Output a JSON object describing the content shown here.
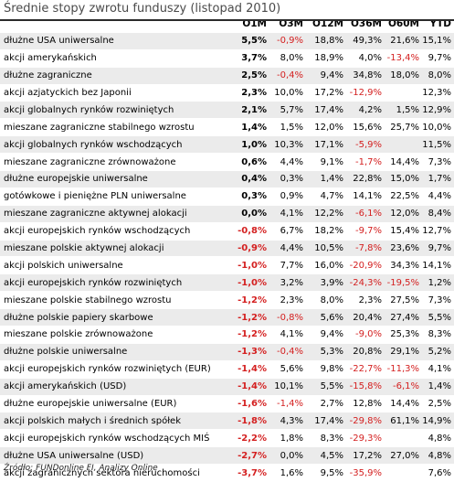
{
  "title": "Średnie stopy zwrotu funduszy (listopad 2010)",
  "columns": [
    "",
    "O1M",
    "O3M",
    "O12M",
    "O36M",
    "O60M",
    "YTD"
  ],
  "rows": [
    [
      "dłużne USA uniwersalne",
      "5,5%",
      "-0,9%",
      "18,8%",
      "49,3%",
      "21,6%",
      "15,1%"
    ],
    [
      "akcji amerykańskich",
      "3,7%",
      "8,0%",
      "18,9%",
      "4,0%",
      "-13,4%",
      "9,7%"
    ],
    [
      "dłużne zagraniczne",
      "2,5%",
      "-0,4%",
      "9,4%",
      "34,8%",
      "18,0%",
      "8,0%"
    ],
    [
      "akcji azjatyckich bez Japonii",
      "2,3%",
      "10,0%",
      "17,2%",
      "-12,9%",
      "",
      "12,3%"
    ],
    [
      "akcji globalnych rynków rozwiniętych",
      "2,1%",
      "5,7%",
      "17,4%",
      "4,2%",
      "1,5%",
      "12,9%"
    ],
    [
      "mieszane zagraniczne stabilnego wzrostu",
      "1,4%",
      "1,5%",
      "12,0%",
      "15,6%",
      "25,7%",
      "10,0%"
    ],
    [
      "akcji globalnych rynków wschodzących",
      "1,0%",
      "10,3%",
      "17,1%",
      "-5,9%",
      "",
      "11,5%"
    ],
    [
      "mieszane zagraniczne zrównoważone",
      "0,6%",
      "4,4%",
      "9,1%",
      "-1,7%",
      "14,4%",
      "7,3%"
    ],
    [
      "dłużne europejskie uniwersalne",
      "0,4%",
      "0,3%",
      "1,4%",
      "22,8%",
      "15,0%",
      "1,7%"
    ],
    [
      "gotówkowe i pieniężne PLN uniwersalne",
      "0,3%",
      "0,9%",
      "4,7%",
      "14,1%",
      "22,5%",
      "4,4%"
    ],
    [
      "mieszane zagraniczne aktywnej alokacji",
      "0,0%",
      "4,1%",
      "12,2%",
      "-6,1%",
      "12,0%",
      "8,4%"
    ],
    [
      "akcji europejskich rynków wschodzących",
      "-0,8%",
      "6,7%",
      "18,2%",
      "-9,7%",
      "15,4%",
      "12,7%"
    ],
    [
      "mieszane polskie aktywnej alokacji",
      "-0,9%",
      "4,4%",
      "10,5%",
      "-7,8%",
      "23,6%",
      "9,7%"
    ],
    [
      "akcji polskich uniwersalne",
      "-1,0%",
      "7,7%",
      "16,0%",
      "-20,9%",
      "34,3%",
      "14,1%"
    ],
    [
      "akcji europejskich rynków rozwiniętych",
      "-1,0%",
      "3,2%",
      "3,9%",
      "-24,3%",
      "-19,5%",
      "1,2%"
    ],
    [
      "mieszane polskie stabilnego wzrostu",
      "-1,2%",
      "2,3%",
      "8,0%",
      "2,3%",
      "27,5%",
      "7,3%"
    ],
    [
      "dłużne polskie papiery skarbowe",
      "-1,2%",
      "-0,8%",
      "5,6%",
      "20,4%",
      "27,4%",
      "5,5%"
    ],
    [
      "mieszane polskie zrównoważone",
      "-1,2%",
      "4,1%",
      "9,4%",
      "-9,0%",
      "25,3%",
      "8,3%"
    ],
    [
      "dłużne polskie uniwersalne",
      "-1,3%",
      "-0,4%",
      "5,3%",
      "20,8%",
      "29,1%",
      "5,2%"
    ],
    [
      "akcji europejskich rynków rozwiniętych (EUR)",
      "-1,4%",
      "5,6%",
      "9,8%",
      "-22,7%",
      "-11,3%",
      "4,1%"
    ],
    [
      "akcji amerykańskich (USD)",
      "-1,4%",
      "10,1%",
      "5,5%",
      "-15,8%",
      "-6,1%",
      "1,4%"
    ],
    [
      "dłużne europejskie uniwersalne (EUR)",
      "-1,6%",
      "-1,4%",
      "2,7%",
      "12,8%",
      "14,4%",
      "2,5%"
    ],
    [
      "akcji polskich małych i średnich spółek",
      "-1,8%",
      "4,3%",
      "17,4%",
      "-29,8%",
      "61,1%",
      "14,9%"
    ],
    [
      "akcji europejskich rynków wschodzących MIŚ",
      "-2,2%",
      "1,8%",
      "8,3%",
      "-29,3%",
      "",
      "4,8%"
    ],
    [
      "dłużne USA uniwersalne (USD)",
      "-2,7%",
      "0,0%",
      "4,5%",
      "17,2%",
      "27,0%",
      "4,8%"
    ],
    [
      "akcji zagranicznych sektora nieruchomości",
      "-3,7%",
      "1,6%",
      "9,5%",
      "-35,9%",
      "",
      "7,6%"
    ]
  ],
  "source": "Źródło: FUNDonline FI, Analizy Online",
  "colors": {
    "negative": "#d42020",
    "row_shade": "#ebebeb",
    "title": "#4a4a4a"
  }
}
